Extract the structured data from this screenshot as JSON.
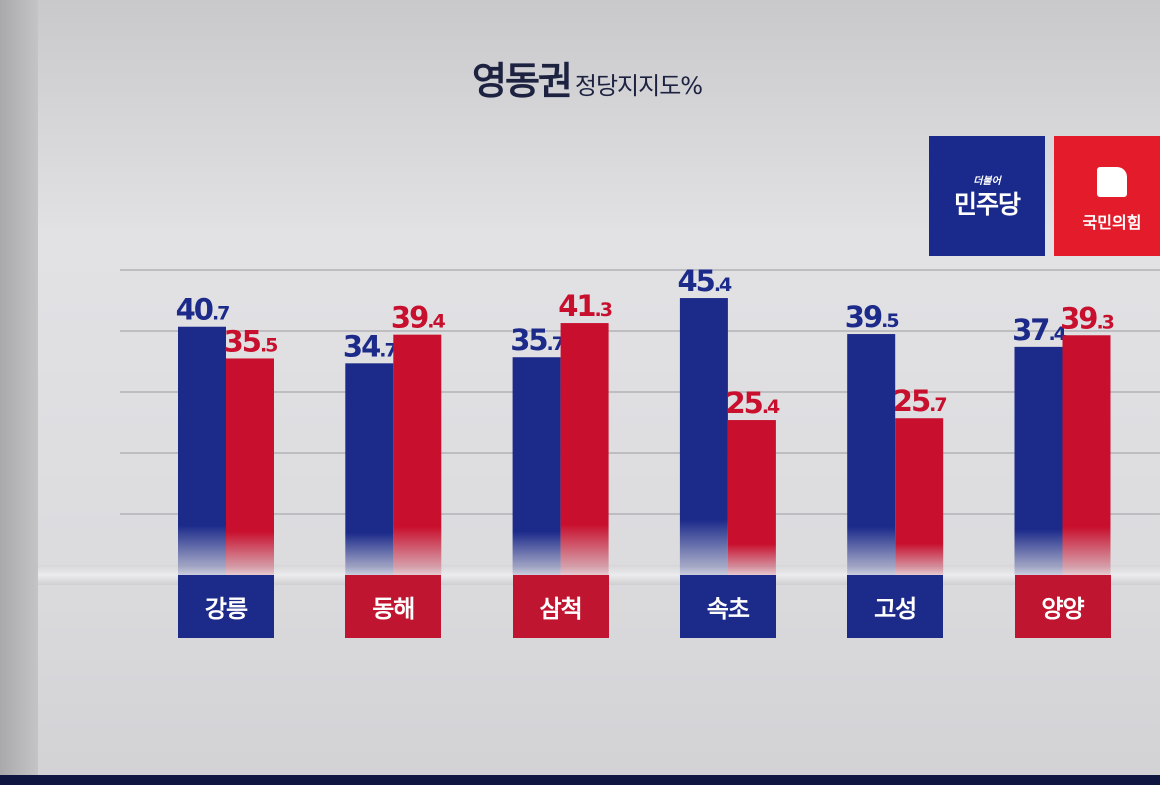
{
  "title": {
    "main": "영동권",
    "sub": "정당지지도%"
  },
  "legend": [
    {
      "logo_small": "더불어",
      "name": "민주당",
      "color": "#1a2a8c"
    },
    {
      "name": "국민의힘",
      "color": "#e31b2a"
    }
  ],
  "chart_data": {
    "type": "bar",
    "title": "영동권 정당지지도%",
    "categories": [
      "강릉",
      "동해",
      "삼척",
      "속초",
      "고성",
      "양양"
    ],
    "series": [
      {
        "name": "민주당",
        "color": "#1c2a8a",
        "values": [
          40.7,
          34.7,
          35.7,
          45.4,
          39.5,
          37.4
        ]
      },
      {
        "name": "국민의힘",
        "color": "#c8102e",
        "values": [
          35.5,
          39.4,
          41.3,
          25.4,
          25.7,
          39.3
        ]
      }
    ],
    "ylim": [
      0,
      50
    ],
    "grid": true,
    "legend_placement": "top-right"
  }
}
